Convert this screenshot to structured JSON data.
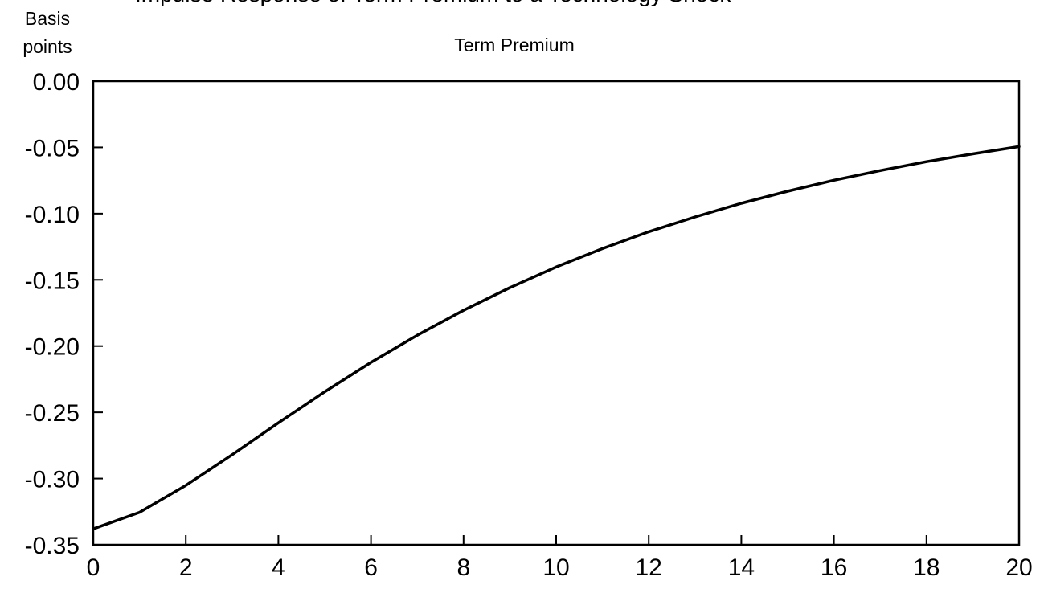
{
  "header": {
    "cut_title": "Impulse Response of Term Premium to a Technology Shock"
  },
  "chart_data": {
    "type": "line",
    "title": "Term Premium",
    "ylabel_line1": "Basis",
    "ylabel_line2": "points",
    "xlabel": "",
    "xlim": [
      0,
      20
    ],
    "ylim": [
      -0.35,
      0.0
    ],
    "xticks": [
      0,
      2,
      4,
      6,
      8,
      10,
      12,
      14,
      16,
      18,
      20
    ],
    "yticks": [
      0.0,
      -0.05,
      -0.1,
      -0.15,
      -0.2,
      -0.25,
      -0.3,
      -0.35
    ],
    "ytick_labels": [
      "0.00",
      "-0.05",
      "-0.10",
      "-0.15",
      "-0.20",
      "-0.25",
      "-0.30",
      "-0.35"
    ],
    "xtick_labels": [
      "0",
      "2",
      "4",
      "6",
      "8",
      "10",
      "12",
      "14",
      "16",
      "18",
      "20"
    ],
    "grid": false,
    "series": [
      {
        "color": "#000000",
        "x": [
          0,
          1,
          2,
          3,
          4,
          5,
          6,
          7,
          8,
          9,
          10,
          11,
          12,
          13,
          14,
          15,
          16,
          17,
          18,
          19,
          20
        ],
        "y": [
          -0.338,
          -0.3255,
          -0.3052,
          -0.282,
          -0.2579,
          -0.2345,
          -0.2123,
          -0.1918,
          -0.173,
          -0.1559,
          -0.1403,
          -0.1264,
          -0.1137,
          -0.1025,
          -0.0922,
          -0.0831,
          -0.0748,
          -0.0675,
          -0.0608,
          -0.0549,
          -0.0494
        ]
      }
    ]
  }
}
